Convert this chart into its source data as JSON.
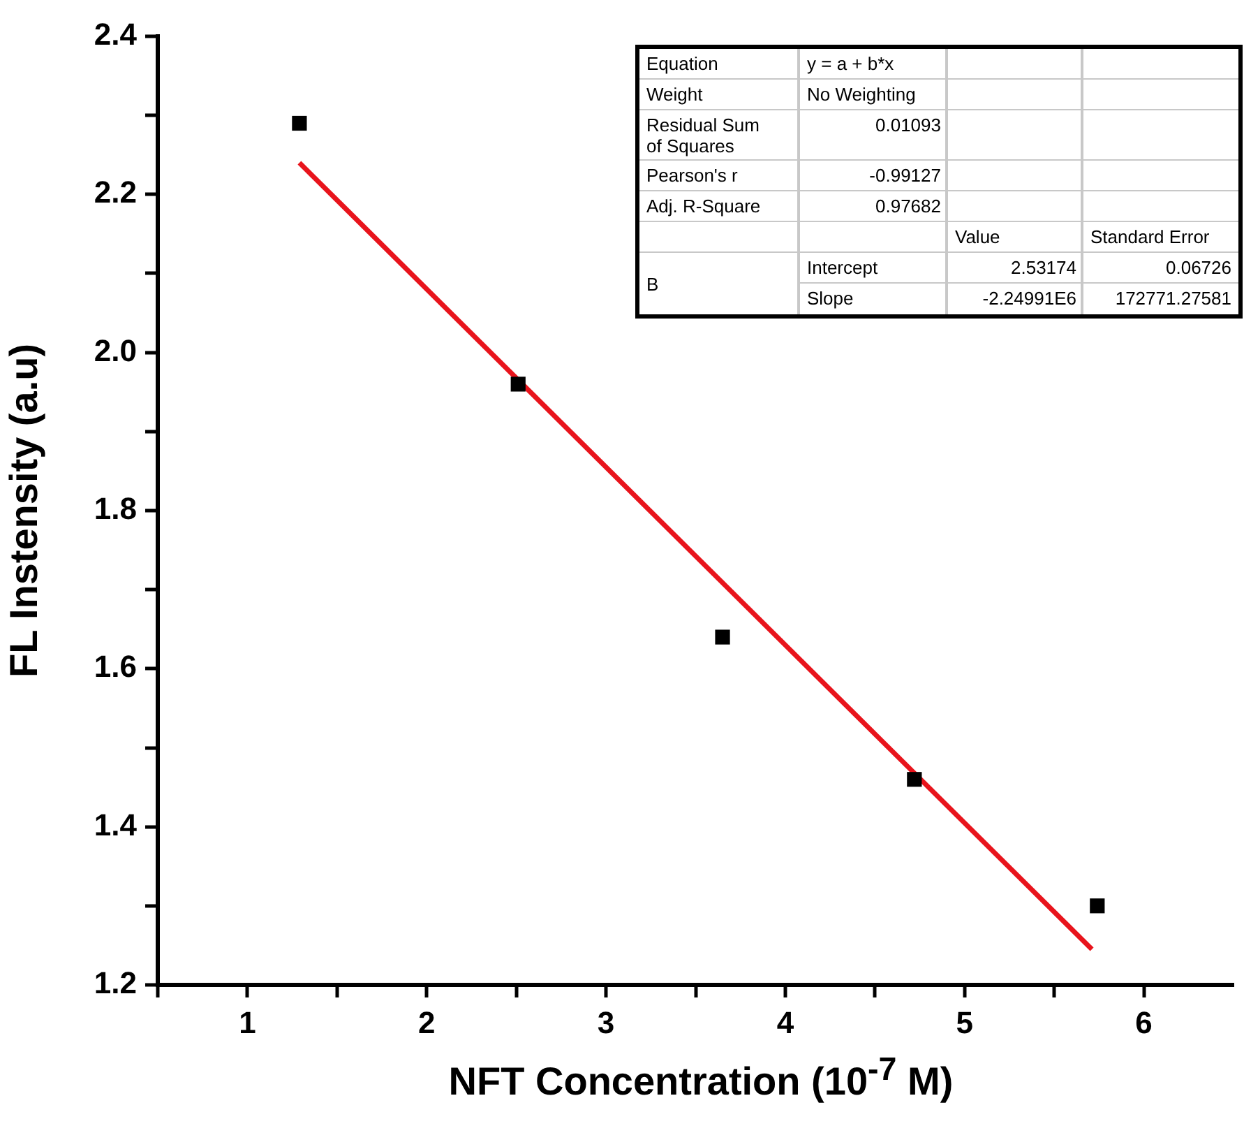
{
  "chart_data": {
    "type": "scatter",
    "xlabel": "NFT Concentration (10$^{-7}$ M)",
    "ylabel": "FL Instensity (a.u)",
    "xlim": [
      0.5,
      6.5
    ],
    "xticks": [
      {
        "value": 0.5,
        "label": null
      },
      1,
      {
        "value": 1.5,
        "label": null
      },
      2,
      {
        "value": 2.5,
        "label": null
      },
      3,
      {
        "value": 3.5,
        "label": null
      },
      4,
      {
        "value": 4.5,
        "label": null
      },
      5,
      {
        "value": 5.5,
        "label": null
      },
      6
    ],
    "ylim": [
      1.2,
      2.4
    ],
    "yticks": [
      {
        "value": 1.2,
        "label": "1.2"
      },
      {
        "value": 1.3,
        "label": null
      },
      {
        "value": 1.4,
        "label": "1.4"
      },
      {
        "value": 1.5,
        "label": null
      },
      {
        "value": 1.6,
        "label": "1.6"
      },
      {
        "value": 1.7,
        "label": null
      },
      {
        "value": 1.8,
        "label": "1.8"
      },
      {
        "value": 1.9,
        "label": null
      },
      {
        "value": 2.0,
        "label": "2.0"
      },
      {
        "value": 2.1,
        "label": null
      },
      {
        "value": 2.2,
        "label": "2.2"
      },
      {
        "value": 2.3,
        "label": null
      },
      {
        "value": 2.4,
        "label": "2.4"
      }
    ],
    "series": [
      {
        "type": "scatter",
        "marker": "square",
        "color": "#000000",
        "x": [
          1.29,
          2.51,
          3.65,
          4.72,
          5.74
        ],
        "values": [
          2.29,
          1.96,
          1.64,
          1.46,
          1.3
        ]
      },
      {
        "type": "line",
        "marker": "none",
        "line_style": "solid",
        "color": "#e8141c",
        "x": [
          1.29,
          5.71
        ],
        "values": [
          2.24,
          1.245
        ]
      }
    ],
    "annotations": [
      "Equation",
      "y = a + b*x",
      "Weight",
      "No Weighting",
      "Residual Sum of Squares",
      "0.01093",
      "Pearson's r",
      "-0.99127",
      "Adj. R-Square",
      "0.97682",
      "Value",
      "Standard Error",
      "B",
      "Intercept",
      "2.53174",
      "0.06726",
      "Slope",
      "-2.24991E6",
      "172771.27581"
    ]
  }
}
